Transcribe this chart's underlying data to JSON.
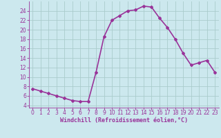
{
  "x": [
    0,
    1,
    2,
    3,
    4,
    5,
    6,
    7,
    8,
    9,
    10,
    11,
    12,
    13,
    14,
    15,
    16,
    17,
    18,
    19,
    20,
    21,
    22,
    23
  ],
  "y": [
    7.5,
    7.0,
    6.5,
    6.0,
    5.5,
    5.0,
    4.8,
    4.8,
    11.0,
    18.5,
    22.0,
    23.0,
    24.0,
    24.2,
    25.0,
    24.8,
    22.5,
    20.5,
    18.0,
    15.0,
    12.5,
    13.0,
    13.5,
    11.0
  ],
  "line_color": "#993399",
  "marker": "D",
  "marker_size": 2,
  "bg_color": "#cce8ee",
  "grid_color": "#aacccc",
  "xlabel": "Windchill (Refroidissement éolien,°C)",
  "xlabel_color": "#993399",
  "tick_color": "#993399",
  "ylim": [
    3.5,
    26.0
  ],
  "xlim": [
    -0.5,
    23.5
  ],
  "yticks": [
    4,
    6,
    8,
    10,
    12,
    14,
    16,
    18,
    20,
    22,
    24
  ],
  "xticks": [
    0,
    1,
    2,
    3,
    4,
    5,
    6,
    7,
    8,
    9,
    10,
    11,
    12,
    13,
    14,
    15,
    16,
    17,
    18,
    19,
    20,
    21,
    22,
    23
  ],
  "linewidth": 1.2
}
